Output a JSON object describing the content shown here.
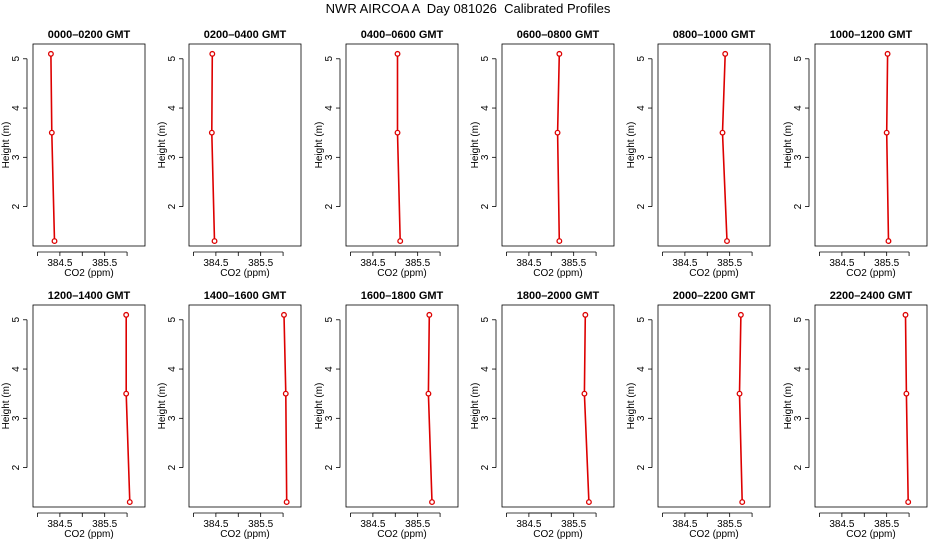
{
  "title": "NWR AIRCOA A  Day 081026  Calibrated Profiles",
  "colors": {
    "series": "#dd0000",
    "axis": "#000000",
    "background": "#ffffff"
  },
  "chart_data": [
    {
      "type": "line",
      "title": "0000–0200 GMT",
      "xlabel": "CO2 (ppm)",
      "ylabel": "Height (m)",
      "xlim": [
        383.9,
        386.4
      ],
      "ylim": [
        1.2,
        5.3
      ],
      "xticks": [
        "384.5",
        "385.5"
      ],
      "yticks": [
        "2",
        "3",
        "4",
        "5"
      ],
      "x": [
        384.3,
        384.32,
        384.38
      ],
      "y": [
        5.1,
        3.5,
        1.3
      ]
    },
    {
      "type": "line",
      "title": "0200–0400 GMT",
      "xlabel": "CO2 (ppm)",
      "ylabel": "Height (m)",
      "xlim": [
        383.9,
        386.4
      ],
      "ylim": [
        1.2,
        5.3
      ],
      "xticks": [
        "384.5",
        "385.5"
      ],
      "yticks": [
        "2",
        "3",
        "4",
        "5"
      ],
      "x": [
        384.42,
        384.41,
        384.47
      ],
      "y": [
        5.1,
        3.5,
        1.3
      ]
    },
    {
      "type": "line",
      "title": "0400–0600 GMT",
      "xlabel": "CO2 (ppm)",
      "ylabel": "Height (m)",
      "xlim": [
        383.9,
        386.4
      ],
      "ylim": [
        1.2,
        5.3
      ],
      "xticks": [
        "384.5",
        "385.5"
      ],
      "yticks": [
        "2",
        "3",
        "4",
        "5"
      ],
      "x": [
        385.05,
        385.05,
        385.11
      ],
      "y": [
        5.1,
        3.5,
        1.3
      ]
    },
    {
      "type": "line",
      "title": "0600–0800 GMT",
      "xlabel": "CO2 (ppm)",
      "ylabel": "Height (m)",
      "xlim": [
        383.9,
        386.4
      ],
      "ylim": [
        1.2,
        5.3
      ],
      "xticks": [
        "384.5",
        "385.5"
      ],
      "yticks": [
        "2",
        "3",
        "4",
        "5"
      ],
      "x": [
        385.18,
        385.14,
        385.18
      ],
      "y": [
        5.1,
        3.5,
        1.3
      ]
    },
    {
      "type": "line",
      "title": "0800–1000 GMT",
      "xlabel": "CO2 (ppm)",
      "ylabel": "Height (m)",
      "xlim": [
        383.9,
        386.4
      ],
      "ylim": [
        1.2,
        5.3
      ],
      "xticks": [
        "384.5",
        "385.5"
      ],
      "yticks": [
        "2",
        "3",
        "4",
        "5"
      ],
      "x": [
        385.4,
        385.34,
        385.44
      ],
      "y": [
        5.1,
        3.5,
        1.3
      ]
    },
    {
      "type": "line",
      "title": "1000–1200 GMT",
      "xlabel": "CO2 (ppm)",
      "ylabel": "Height (m)",
      "xlim": [
        383.9,
        386.4
      ],
      "ylim": [
        1.2,
        5.3
      ],
      "xticks": [
        "384.5",
        "385.5"
      ],
      "yticks": [
        "2",
        "3",
        "4",
        "5"
      ],
      "x": [
        385.52,
        385.5,
        385.54
      ],
      "y": [
        5.1,
        3.5,
        1.3
      ]
    },
    {
      "type": "line",
      "title": "1200–1400 GMT",
      "xlabel": "CO2 (ppm)",
      "ylabel": "Height (m)",
      "xlim": [
        383.9,
        386.4
      ],
      "ylim": [
        1.2,
        5.3
      ],
      "xticks": [
        "384.5",
        "385.5"
      ],
      "yticks": [
        "2",
        "3",
        "4",
        "5"
      ],
      "x": [
        385.98,
        385.98,
        386.06
      ],
      "y": [
        5.1,
        3.5,
        1.3
      ]
    },
    {
      "type": "line",
      "title": "1400–1600 GMT",
      "xlabel": "CO2 (ppm)",
      "ylabel": "Height (m)",
      "xlim": [
        383.9,
        386.4
      ],
      "ylim": [
        1.2,
        5.3
      ],
      "xticks": [
        "384.5",
        "385.5"
      ],
      "yticks": [
        "2",
        "3",
        "4",
        "5"
      ],
      "x": [
        386.02,
        386.06,
        386.08
      ],
      "y": [
        5.1,
        3.5,
        1.3
      ]
    },
    {
      "type": "line",
      "title": "1600–1800 GMT",
      "xlabel": "CO2 (ppm)",
      "ylabel": "Height (m)",
      "xlim": [
        383.9,
        386.4
      ],
      "ylim": [
        1.2,
        5.3
      ],
      "xticks": [
        "384.5",
        "385.5"
      ],
      "yticks": [
        "2",
        "3",
        "4",
        "5"
      ],
      "x": [
        385.76,
        385.74,
        385.82
      ],
      "y": [
        5.1,
        3.5,
        1.3
      ]
    },
    {
      "type": "line",
      "title": "1800–2000 GMT",
      "xlabel": "CO2 (ppm)",
      "ylabel": "Height (m)",
      "xlim": [
        383.9,
        386.4
      ],
      "ylim": [
        1.2,
        5.3
      ],
      "xticks": [
        "384.5",
        "385.5"
      ],
      "yticks": [
        "2",
        "3",
        "4",
        "5"
      ],
      "x": [
        385.76,
        385.74,
        385.84
      ],
      "y": [
        5.1,
        3.5,
        1.3
      ]
    },
    {
      "type": "line",
      "title": "2000–2200 GMT",
      "xlabel": "CO2 (ppm)",
      "ylabel": "Height (m)",
      "xlim": [
        383.9,
        386.4
      ],
      "ylim": [
        1.2,
        5.3
      ],
      "xticks": [
        "384.5",
        "385.5"
      ],
      "yticks": [
        "2",
        "3",
        "4",
        "5"
      ],
      "x": [
        385.75,
        385.72,
        385.78
      ],
      "y": [
        5.1,
        3.5,
        1.3
      ]
    },
    {
      "type": "line",
      "title": "2200–2400 GMT",
      "xlabel": "CO2 (ppm)",
      "ylabel": "Height (m)",
      "xlim": [
        383.9,
        386.4
      ],
      "ylim": [
        1.2,
        5.3
      ],
      "xticks": [
        "384.5",
        "385.5"
      ],
      "yticks": [
        "2",
        "3",
        "4",
        "5"
      ],
      "x": [
        385.92,
        385.94,
        385.98
      ],
      "y": [
        5.1,
        3.5,
        1.3
      ]
    }
  ]
}
